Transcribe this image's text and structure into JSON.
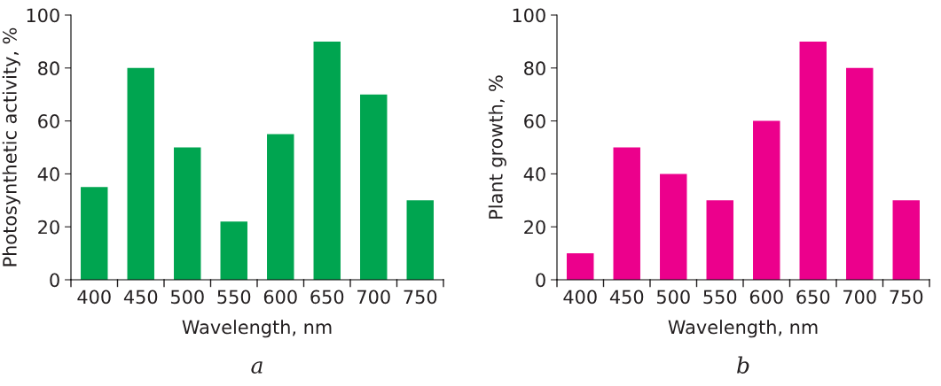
{
  "chart_data": [
    {
      "type": "bar",
      "categories": [
        "400",
        "450",
        "500",
        "550",
        "600",
        "650",
        "700",
        "750"
      ],
      "xlabel": "Wavelength, nm",
      "ylabel": "Photosynthetic activity, %",
      "values": [
        35,
        80,
        50,
        22,
        55,
        90,
        70,
        30
      ],
      "color": "#00a550",
      "ylim": [
        0,
        100
      ],
      "yticks": [
        0,
        20,
        40,
        60,
        80,
        100
      ],
      "grid": false,
      "annotations": [
        "a"
      ]
    },
    {
      "type": "bar",
      "categories": [
        "400",
        "450",
        "500",
        "550",
        "600",
        "650",
        "700",
        "750"
      ],
      "xlabel": "Wavelength, nm",
      "ylabel": "Plant growth, %",
      "values": [
        10,
        50,
        40,
        30,
        60,
        90,
        80,
        30
      ],
      "color": "#ec008c",
      "ylim": [
        0,
        100
      ],
      "yticks": [
        0,
        20,
        40,
        60,
        80,
        100
      ],
      "grid": false,
      "annotations": [
        "b"
      ]
    }
  ]
}
